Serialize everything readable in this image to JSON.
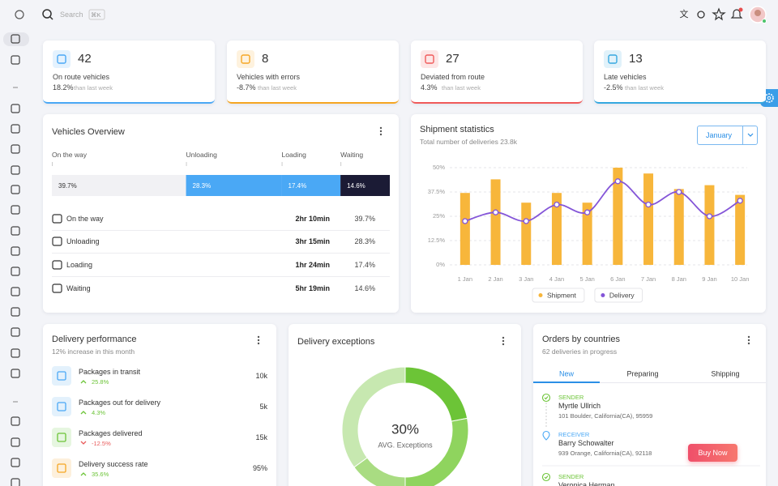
{
  "header": {
    "search_placeholder": "Search",
    "shortcut": "⌘K"
  },
  "stat_cards": [
    {
      "value": 42,
      "label": "On route vehicles",
      "change": "18.2%",
      "note": "than last week",
      "color": "#4aa8f5"
    },
    {
      "value": 8,
      "label": "Vehicles with errors",
      "change": "-8.7%",
      "note": "than last week",
      "color": "#f5a623"
    },
    {
      "value": 27,
      "label": "Deviated from route",
      "change": "4.3%",
      "note": "than last week",
      "color": "#f05a5a"
    },
    {
      "value": 13,
      "label": "Late vehicles",
      "change": "-2.5%",
      "note": "than last week",
      "color": "#35a8e0"
    }
  ],
  "vehicles_overview": {
    "title": "Vehicles Overview",
    "segments": [
      {
        "name": "On the way",
        "percent": 39.7,
        "percent_label": "39.7%",
        "time": "2hr 10min",
        "color": "#f1f1f4"
      },
      {
        "name": "Unloading",
        "percent": 28.3,
        "percent_label": "28.3%",
        "time": "3hr 15min",
        "color": "#4aa8f5"
      },
      {
        "name": "Loading",
        "percent": 17.4,
        "percent_label": "17.4%",
        "time": "1hr 24min",
        "color": "#4aa8f5"
      },
      {
        "name": "Waiting",
        "percent": 14.6,
        "percent_label": "14.6%",
        "time": "5hr 19min",
        "color": "#1b1b35"
      }
    ]
  },
  "shipment_statistics": {
    "title": "Shipment statistics",
    "subtitle": "Total number of deliveries 23.8k",
    "selector": "January",
    "chart": {
      "type": "bar-line",
      "categories": [
        "1 Jan",
        "2 Jan",
        "3 Jan",
        "4 Jan",
        "5 Jan",
        "6 Jan",
        "7 Jan",
        "8 Jan",
        "9 Jan",
        "10 Jan"
      ],
      "series": [
        {
          "name": "Shipment",
          "type": "bar",
          "color": "#f7b63b",
          "values": [
            37,
            44,
            32,
            37,
            32,
            50,
            47,
            39,
            41,
            36
          ]
        },
        {
          "name": "Delivery",
          "type": "line",
          "color": "#8455d8",
          "values": [
            22.5,
            27,
            22.5,
            31,
            27,
            43,
            31,
            37.5,
            25,
            33
          ]
        }
      ],
      "ylim": [
        0,
        50
      ],
      "yticks": [
        {
          "value": 0,
          "label": "0%"
        },
        {
          "value": 12.5,
          "label": "12.5%"
        },
        {
          "value": 25,
          "label": "25%"
        },
        {
          "value": 37.5,
          "label": "37.5%"
        },
        {
          "value": 50,
          "label": "50%"
        }
      ],
      "grid": true
    }
  },
  "delivery_performance": {
    "title": "Delivery performance",
    "subtitle": "12% increase in this month",
    "items": [
      {
        "name": "Packages in transit",
        "change": "25.8%",
        "trend": "up",
        "value": "10k"
      },
      {
        "name": "Packages out for delivery",
        "change": "4.3%",
        "trend": "up",
        "value": "5k"
      },
      {
        "name": "Packages delivered",
        "change": "-12.5%",
        "trend": "down",
        "value": "15k"
      },
      {
        "name": "Delivery success rate",
        "change": "35.6%",
        "trend": "up",
        "value": "95%"
      }
    ]
  },
  "delivery_exceptions": {
    "title": "Delivery exceptions",
    "center_value": "30%",
    "center_label": "AVG. Exceptions",
    "chart": {
      "type": "donut",
      "values": [
        22,
        28,
        15,
        35
      ],
      "colors": [
        "#6cc437",
        "#8fd45e",
        "#a9dc82",
        "#c7e8b0"
      ]
    }
  },
  "orders_by_countries": {
    "title": "Orders by countries",
    "subtitle": "62 deliveries in progress",
    "tabs": [
      "New",
      "Preparing",
      "Shipping"
    ],
    "active_tab": 0,
    "entries": [
      {
        "role": "SENDER",
        "name": "Myrtle Ullrich",
        "address": "101 Boulder, California(CA), 95959"
      },
      {
        "role": "RECEIVER",
        "name": "Barry Schowalter",
        "address": "939 Orange, California(CA), 92118"
      },
      {
        "role": "SENDER",
        "name": "Veronica Herman"
      }
    ]
  },
  "buy_now": "Buy Now"
}
